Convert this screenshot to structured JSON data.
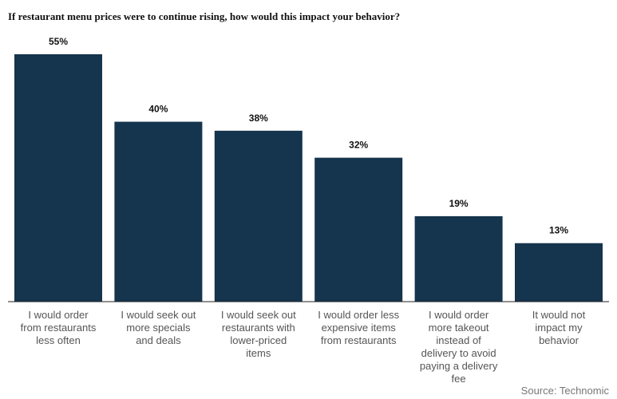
{
  "chart_data": {
    "type": "bar",
    "title": "If restaurant menu prices were to continue rising, how would this impact your behavior?",
    "categories": [
      [
        "I would order",
        "from restaurants",
        "less often"
      ],
      [
        "I would seek out",
        "more specials",
        "and deals"
      ],
      [
        "I would seek out",
        "restaurants with",
        "lower-priced",
        "items"
      ],
      [
        "I would order less",
        "expensive items",
        "from restaurants"
      ],
      [
        "I would order",
        "more takeout",
        "instead of",
        "delivery to avoid",
        "paying a delivery",
        "fee"
      ],
      [
        "It would not",
        "impact my",
        "behavior"
      ]
    ],
    "values": [
      55,
      40,
      38,
      32,
      19,
      13
    ],
    "data_labels": [
      "55%",
      "40%",
      "38%",
      "32%",
      "19%",
      "13%"
    ],
    "ylim": [
      0,
      55
    ],
    "grid": false,
    "bar_color": "#15344d"
  },
  "source": "Source: Technomic"
}
